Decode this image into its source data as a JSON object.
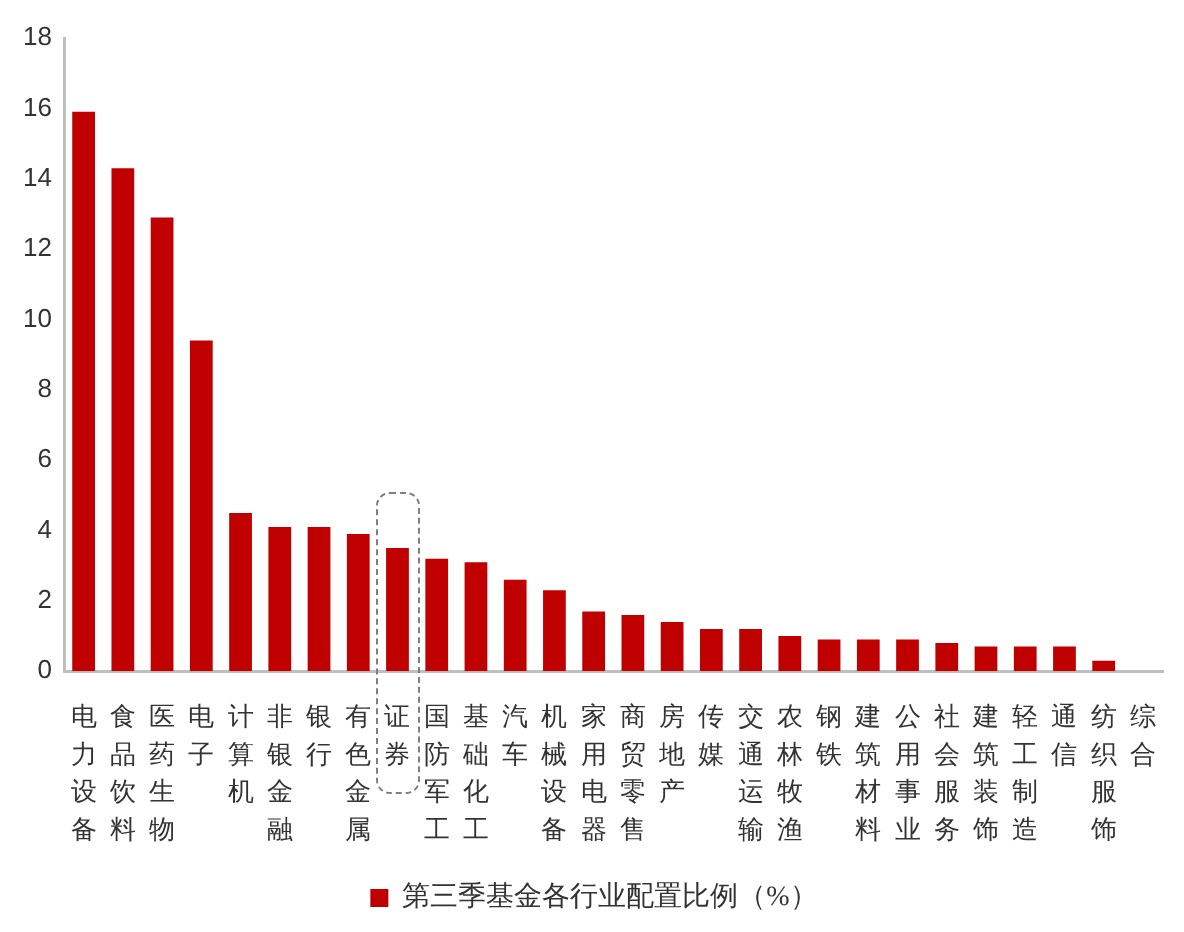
{
  "chart_data": {
    "type": "bar",
    "categories": [
      "电力设备",
      "食品饮料",
      "医药生物",
      "电子",
      "计算机",
      "非银金融",
      "银行",
      "有色金属",
      "证券",
      "国防军工",
      "基础化工",
      "汽车",
      "机械设备",
      "家用电器",
      "商贸零售",
      "房地产",
      "传媒",
      "交通运输",
      "农林牧渔",
      "钢铁",
      "建筑材料",
      "公用事业",
      "社会服务",
      "建筑装饰",
      "轻工制造",
      "通信",
      "纺织服饰",
      "综合"
    ],
    "series": [
      {
        "name": "第三季基金各行业配置比例（%）",
        "color": "#c00000",
        "values": [
          15.9,
          14.3,
          12.9,
          9.4,
          4.5,
          4.1,
          4.1,
          3.9,
          3.5,
          3.2,
          3.1,
          2.6,
          2.3,
          1.7,
          1.6,
          1.4,
          1.2,
          1.2,
          1.0,
          0.9,
          0.9,
          0.9,
          0.8,
          0.7,
          0.7,
          0.7,
          0.3,
          0
        ]
      }
    ],
    "ylim": [
      0,
      18
    ],
    "yticks": [
      0,
      2,
      4,
      6,
      8,
      10,
      12,
      14,
      16,
      18
    ],
    "grid": false,
    "legend": "bottom"
  }
}
